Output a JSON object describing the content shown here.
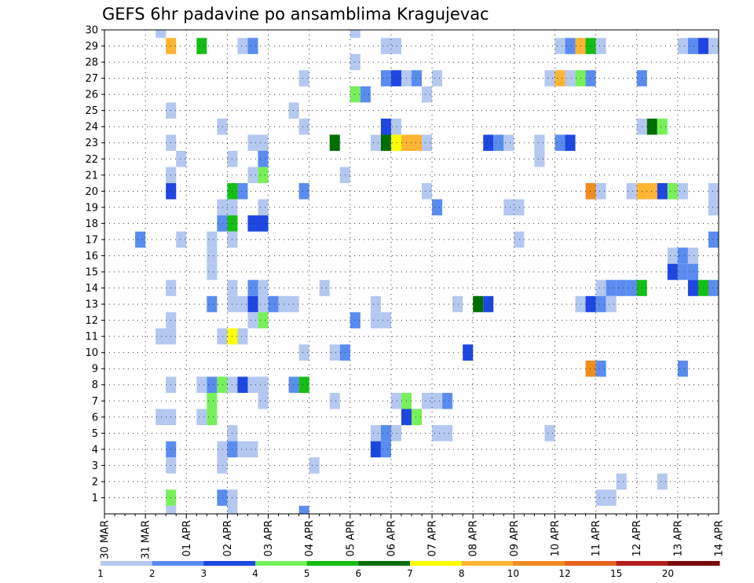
{
  "chart_data": {
    "type": "heatmap",
    "title": "GEFS 6hr padavine po ansamblima Kragujevac",
    "x_labels": [
      "30 MAR",
      "31 MAR",
      "01 APR",
      "02 APR",
      "03 APR",
      "04 APR",
      "05 APR",
      "06 APR",
      "07 APR",
      "08 APR",
      "09 APR",
      "10 APR",
      "11 APR",
      "12 APR",
      "13 APR",
      "14 APR"
    ],
    "y_labels": [
      "1",
      "2",
      "3",
      "4",
      "5",
      "6",
      "7",
      "8",
      "9",
      "10",
      "11",
      "12",
      "13",
      "14",
      "15",
      "16",
      "17",
      "18",
      "19",
      "20",
      "21",
      "22",
      "23",
      "24",
      "25",
      "26",
      "27",
      "28",
      "29",
      "30"
    ],
    "legend_levels": [
      "1",
      "2",
      "3",
      "4",
      "5",
      "6",
      "7",
      "8",
      "10",
      "12",
      "15",
      "20"
    ],
    "legend_colors": [
      "#b4c8f0",
      "#5a8cf0",
      "#1e46e1",
      "#78f05a",
      "#14be14",
      "#006e00",
      "#ffff00",
      "#ffb432",
      "#f08c1e",
      "#e6641e",
      "#b41e1e",
      "#780a0a"
    ],
    "cells": [
      {
        "d": "31 MAR",
        "h": 6,
        "m": 30,
        "c": 1
      },
      {
        "d": "31 MAR",
        "h": 12,
        "m": 29,
        "c": 8
      },
      {
        "d": "01 APR",
        "h": 6,
        "m": 29,
        "c": 5
      },
      {
        "d": "02 APR",
        "h": 6,
        "m": 29,
        "c": 1
      },
      {
        "d": "02 APR",
        "h": 12,
        "m": 29,
        "c": 2
      },
      {
        "d": "05 APR",
        "h": 0,
        "m": 30,
        "c": 1
      },
      {
        "d": "05 APR",
        "h": 18,
        "m": 29,
        "c": 1
      },
      {
        "d": "06 APR",
        "h": 0,
        "m": 29,
        "c": 1
      },
      {
        "d": "10 APR",
        "h": 0,
        "m": 29,
        "c": 1
      },
      {
        "d": "10 APR",
        "h": 6,
        "m": 29,
        "c": 2
      },
      {
        "d": "10 APR",
        "h": 12,
        "m": 29,
        "c": 8
      },
      {
        "d": "10 APR",
        "h": 18,
        "m": 29,
        "c": 5
      },
      {
        "d": "11 APR",
        "h": 0,
        "m": 29,
        "c": 1
      },
      {
        "d": "13 APR",
        "h": 0,
        "m": 29,
        "c": 1
      },
      {
        "d": "13 APR",
        "h": 6,
        "m": 29,
        "c": 2
      },
      {
        "d": "13 APR",
        "h": 12,
        "m": 29,
        "c": 3
      },
      {
        "d": "13 APR",
        "h": 18,
        "m": 29,
        "c": 1
      },
      {
        "d": "14 APR",
        "h": 0,
        "m": 30,
        "c": 4
      },
      {
        "d": "05 APR",
        "h": 0,
        "m": 28,
        "c": 1
      },
      {
        "d": "03 APR",
        "h": 18,
        "m": 27,
        "c": 1
      },
      {
        "d": "05 APR",
        "h": 18,
        "m": 27,
        "c": 2
      },
      {
        "d": "06 APR",
        "h": 0,
        "m": 27,
        "c": 3
      },
      {
        "d": "06 APR",
        "h": 6,
        "m": 27,
        "c": 1
      },
      {
        "d": "06 APR",
        "h": 12,
        "m": 27,
        "c": 2
      },
      {
        "d": "07 APR",
        "h": 0,
        "m": 27,
        "c": 1
      },
      {
        "d": "09 APR",
        "h": 18,
        "m": 27,
        "c": 1
      },
      {
        "d": "10 APR",
        "h": 0,
        "m": 27,
        "c": 8
      },
      {
        "d": "10 APR",
        "h": 6,
        "m": 27,
        "c": 1
      },
      {
        "d": "10 APR",
        "h": 12,
        "m": 27,
        "c": 4
      },
      {
        "d": "10 APR",
        "h": 18,
        "m": 27,
        "c": 2
      },
      {
        "d": "12 APR",
        "h": 0,
        "m": 27,
        "c": 2
      },
      {
        "d": "05 APR",
        "h": 0,
        "m": 26,
        "c": 4
      },
      {
        "d": "05 APR",
        "h": 6,
        "m": 26,
        "c": 2
      },
      {
        "d": "06 APR",
        "h": 18,
        "m": 26,
        "c": 1
      },
      {
        "d": "31 MAR",
        "h": 12,
        "m": 25,
        "c": 1
      },
      {
        "d": "03 APR",
        "h": 12,
        "m": 25,
        "c": 1
      },
      {
        "d": "14 APR",
        "h": 0,
        "m": 25,
        "c": 1
      },
      {
        "d": "01 APR",
        "h": 18,
        "m": 24,
        "c": 1
      },
      {
        "d": "03 APR",
        "h": 18,
        "m": 24,
        "c": 1
      },
      {
        "d": "05 APR",
        "h": 18,
        "m": 24,
        "c": 3
      },
      {
        "d": "06 APR",
        "h": 0,
        "m": 24,
        "c": 1
      },
      {
        "d": "12 APR",
        "h": 0,
        "m": 24,
        "c": 1
      },
      {
        "d": "12 APR",
        "h": 6,
        "m": 24,
        "c": 6
      },
      {
        "d": "12 APR",
        "h": 12,
        "m": 24,
        "c": 4
      },
      {
        "d": "31 MAR",
        "h": 12,
        "m": 23,
        "c": 1
      },
      {
        "d": "02 APR",
        "h": 12,
        "m": 23,
        "c": 1
      },
      {
        "d": "02 APR",
        "h": 18,
        "m": 23,
        "c": 1
      },
      {
        "d": "04 APR",
        "h": 12,
        "m": 23,
        "c": 6
      },
      {
        "d": "05 APR",
        "h": 12,
        "m": 23,
        "c": 1
      },
      {
        "d": "05 APR",
        "h": 18,
        "m": 23,
        "c": 6
      },
      {
        "d": "06 APR",
        "h": 0,
        "m": 23,
        "c": 7
      },
      {
        "d": "06 APR",
        "h": 6,
        "m": 23,
        "c": 8
      },
      {
        "d": "06 APR",
        "h": 12,
        "m": 23,
        "c": 8
      },
      {
        "d": "06 APR",
        "h": 18,
        "m": 23,
        "c": 1
      },
      {
        "d": "08 APR",
        "h": 6,
        "m": 23,
        "c": 3
      },
      {
        "d": "08 APR",
        "h": 12,
        "m": 23,
        "c": 2
      },
      {
        "d": "08 APR",
        "h": 18,
        "m": 23,
        "c": 1
      },
      {
        "d": "09 APR",
        "h": 12,
        "m": 23,
        "c": 1
      },
      {
        "d": "10 APR",
        "h": 0,
        "m": 23,
        "c": 2
      },
      {
        "d": "10 APR",
        "h": 6,
        "m": 23,
        "c": 3
      },
      {
        "d": "31 MAR",
        "h": 18,
        "m": 22,
        "c": 1
      },
      {
        "d": "02 APR",
        "h": 0,
        "m": 22,
        "c": 1
      },
      {
        "d": "02 APR",
        "h": 18,
        "m": 22,
        "c": 2
      },
      {
        "d": "09 APR",
        "h": 12,
        "m": 22,
        "c": 1
      },
      {
        "d": "14 APR",
        "h": 0,
        "m": 22,
        "c": 1
      },
      {
        "d": "31 MAR",
        "h": 12,
        "m": 21,
        "c": 1
      },
      {
        "d": "02 APR",
        "h": 12,
        "m": 21,
        "c": 1
      },
      {
        "d": "02 APR",
        "h": 18,
        "m": 21,
        "c": 4
      },
      {
        "d": "04 APR",
        "h": 18,
        "m": 21,
        "c": 1
      },
      {
        "d": "31 MAR",
        "h": 12,
        "m": 20,
        "c": 3
      },
      {
        "d": "02 APR",
        "h": 0,
        "m": 20,
        "c": 5
      },
      {
        "d": "02 APR",
        "h": 6,
        "m": 20,
        "c": 2
      },
      {
        "d": "03 APR",
        "h": 18,
        "m": 20,
        "c": 2
      },
      {
        "d": "06 APR",
        "h": 18,
        "m": 20,
        "c": 1
      },
      {
        "d": "10 APR",
        "h": 18,
        "m": 20,
        "c": 9
      },
      {
        "d": "11 APR",
        "h": 0,
        "m": 20,
        "c": 1
      },
      {
        "d": "11 APR",
        "h": 18,
        "m": 20,
        "c": 1
      },
      {
        "d": "12 APR",
        "h": 0,
        "m": 20,
        "c": 8
      },
      {
        "d": "12 APR",
        "h": 6,
        "m": 20,
        "c": 8
      },
      {
        "d": "12 APR",
        "h": 12,
        "m": 20,
        "c": 3
      },
      {
        "d": "12 APR",
        "h": 18,
        "m": 20,
        "c": 4
      },
      {
        "d": "13 APR",
        "h": 0,
        "m": 20,
        "c": 1
      },
      {
        "d": "13 APR",
        "h": 18,
        "m": 20,
        "c": 1
      },
      {
        "d": "14 APR",
        "h": 0,
        "m": 20,
        "c": 9
      },
      {
        "d": "01 APR",
        "h": 18,
        "m": 19,
        "c": 1
      },
      {
        "d": "02 APR",
        "h": 0,
        "m": 19,
        "c": 1
      },
      {
        "d": "02 APR",
        "h": 18,
        "m": 19,
        "c": 1
      },
      {
        "d": "07 APR",
        "h": 0,
        "m": 19,
        "c": 2
      },
      {
        "d": "08 APR",
        "h": 18,
        "m": 19,
        "c": 1
      },
      {
        "d": "09 APR",
        "h": 0,
        "m": 19,
        "c": 1
      },
      {
        "d": "13 APR",
        "h": 18,
        "m": 19,
        "c": 1
      },
      {
        "d": "01 APR",
        "h": 18,
        "m": 18,
        "c": 2
      },
      {
        "d": "02 APR",
        "h": 0,
        "m": 18,
        "c": 5
      },
      {
        "d": "02 APR",
        "h": 12,
        "m": 18,
        "c": 3
      },
      {
        "d": "02 APR",
        "h": 18,
        "m": 18,
        "c": 3
      },
      {
        "d": "30 MAR",
        "h": 18,
        "m": 17,
        "c": 2
      },
      {
        "d": "31 MAR",
        "h": 18,
        "m": 17,
        "c": 1
      },
      {
        "d": "01 APR",
        "h": 12,
        "m": 17,
        "c": 1
      },
      {
        "d": "02 APR",
        "h": 0,
        "m": 17,
        "c": 1
      },
      {
        "d": "09 APR",
        "h": 0,
        "m": 17,
        "c": 1
      },
      {
        "d": "13 APR",
        "h": 18,
        "m": 17,
        "c": 2
      },
      {
        "d": "01 APR",
        "h": 12,
        "m": 16,
        "c": 1
      },
      {
        "d": "12 APR",
        "h": 18,
        "m": 16,
        "c": 1
      },
      {
        "d": "13 APR",
        "h": 0,
        "m": 16,
        "c": 2
      },
      {
        "d": "13 APR",
        "h": 6,
        "m": 16,
        "c": 1
      },
      {
        "d": "01 APR",
        "h": 12,
        "m": 15,
        "c": 1
      },
      {
        "d": "12 APR",
        "h": 18,
        "m": 15,
        "c": 3
      },
      {
        "d": "13 APR",
        "h": 0,
        "m": 15,
        "c": 2
      },
      {
        "d": "13 APR",
        "h": 6,
        "m": 15,
        "c": 2
      },
      {
        "d": "31 MAR",
        "h": 12,
        "m": 14,
        "c": 1
      },
      {
        "d": "02 APR",
        "h": 0,
        "m": 14,
        "c": 1
      },
      {
        "d": "02 APR",
        "h": 12,
        "m": 14,
        "c": 2
      },
      {
        "d": "02 APR",
        "h": 18,
        "m": 14,
        "c": 1
      },
      {
        "d": "04 APR",
        "h": 6,
        "m": 14,
        "c": 1
      },
      {
        "d": "11 APR",
        "h": 0,
        "m": 14,
        "c": 1
      },
      {
        "d": "11 APR",
        "h": 6,
        "m": 14,
        "c": 2
      },
      {
        "d": "11 APR",
        "h": 12,
        "m": 14,
        "c": 2
      },
      {
        "d": "11 APR",
        "h": 18,
        "m": 14,
        "c": 2
      },
      {
        "d": "12 APR",
        "h": 0,
        "m": 14,
        "c": 5
      },
      {
        "d": "13 APR",
        "h": 6,
        "m": 14,
        "c": 3
      },
      {
        "d": "13 APR",
        "h": 12,
        "m": 14,
        "c": 5
      },
      {
        "d": "13 APR",
        "h": 18,
        "m": 14,
        "c": 2
      },
      {
        "d": "01 APR",
        "h": 12,
        "m": 13,
        "c": 2
      },
      {
        "d": "02 APR",
        "h": 0,
        "m": 13,
        "c": 1
      },
      {
        "d": "02 APR",
        "h": 6,
        "m": 13,
        "c": 1
      },
      {
        "d": "02 APR",
        "h": 12,
        "m": 13,
        "c": 3
      },
      {
        "d": "02 APR",
        "h": 18,
        "m": 13,
        "c": 1
      },
      {
        "d": "03 APR",
        "h": 0,
        "m": 13,
        "c": 2
      },
      {
        "d": "03 APR",
        "h": 6,
        "m": 13,
        "c": 1
      },
      {
        "d": "03 APR",
        "h": 12,
        "m": 13,
        "c": 1
      },
      {
        "d": "05 APR",
        "h": 12,
        "m": 13,
        "c": 1
      },
      {
        "d": "07 APR",
        "h": 12,
        "m": 13,
        "c": 1
      },
      {
        "d": "08 APR",
        "h": 0,
        "m": 13,
        "c": 6
      },
      {
        "d": "08 APR",
        "h": 6,
        "m": 13,
        "c": 3
      },
      {
        "d": "10 APR",
        "h": 12,
        "m": 13,
        "c": 1
      },
      {
        "d": "10 APR",
        "h": 18,
        "m": 13,
        "c": 3
      },
      {
        "d": "11 APR",
        "h": 0,
        "m": 13,
        "c": 2
      },
      {
        "d": "11 APR",
        "h": 6,
        "m": 13,
        "c": 1
      },
      {
        "d": "31 MAR",
        "h": 12,
        "m": 12,
        "c": 1
      },
      {
        "d": "02 APR",
        "h": 12,
        "m": 12,
        "c": 1
      },
      {
        "d": "02 APR",
        "h": 18,
        "m": 12,
        "c": 4
      },
      {
        "d": "05 APR",
        "h": 0,
        "m": 12,
        "c": 2
      },
      {
        "d": "05 APR",
        "h": 12,
        "m": 12,
        "c": 1
      },
      {
        "d": "05 APR",
        "h": 18,
        "m": 12,
        "c": 1
      },
      {
        "d": "31 MAR",
        "h": 6,
        "m": 11,
        "c": 1
      },
      {
        "d": "31 MAR",
        "h": 12,
        "m": 11,
        "c": 1
      },
      {
        "d": "01 APR",
        "h": 18,
        "m": 11,
        "c": 1
      },
      {
        "d": "02 APR",
        "h": 0,
        "m": 11,
        "c": 7
      },
      {
        "d": "02 APR",
        "h": 6,
        "m": 11,
        "c": 1
      },
      {
        "d": "03 APR",
        "h": 18,
        "m": 10,
        "c": 1
      },
      {
        "d": "04 APR",
        "h": 12,
        "m": 10,
        "c": 1
      },
      {
        "d": "04 APR",
        "h": 18,
        "m": 10,
        "c": 2
      },
      {
        "d": "07 APR",
        "h": 18,
        "m": 10,
        "c": 3
      },
      {
        "d": "10 APR",
        "h": 18,
        "m": 9,
        "c": 9
      },
      {
        "d": "11 APR",
        "h": 0,
        "m": 9,
        "c": 2
      },
      {
        "d": "13 APR",
        "h": 0,
        "m": 9,
        "c": 2
      },
      {
        "d": "31 MAR",
        "h": 12,
        "m": 8,
        "c": 1
      },
      {
        "d": "01 APR",
        "h": 6,
        "m": 8,
        "c": 1
      },
      {
        "d": "01 APR",
        "h": 12,
        "m": 8,
        "c": 2
      },
      {
        "d": "01 APR",
        "h": 18,
        "m": 8,
        "c": 4
      },
      {
        "d": "02 APR",
        "h": 0,
        "m": 8,
        "c": 1
      },
      {
        "d": "02 APR",
        "h": 6,
        "m": 8,
        "c": 3
      },
      {
        "d": "02 APR",
        "h": 12,
        "m": 8,
        "c": 1
      },
      {
        "d": "02 APR",
        "h": 18,
        "m": 8,
        "c": 1
      },
      {
        "d": "03 APR",
        "h": 12,
        "m": 8,
        "c": 2
      },
      {
        "d": "03 APR",
        "h": 18,
        "m": 8,
        "c": 5
      },
      {
        "d": "01 APR",
        "h": 12,
        "m": 7,
        "c": 4
      },
      {
        "d": "02 APR",
        "h": 18,
        "m": 7,
        "c": 1
      },
      {
        "d": "04 APR",
        "h": 12,
        "m": 7,
        "c": 1
      },
      {
        "d": "06 APR",
        "h": 0,
        "m": 7,
        "c": 1
      },
      {
        "d": "06 APR",
        "h": 6,
        "m": 7,
        "c": 4
      },
      {
        "d": "06 APR",
        "h": 18,
        "m": 7,
        "c": 1
      },
      {
        "d": "07 APR",
        "h": 0,
        "m": 7,
        "c": 1
      },
      {
        "d": "07 APR",
        "h": 6,
        "m": 7,
        "c": 2
      },
      {
        "d": "14 APR",
        "h": 0,
        "m": 7,
        "c": 8
      },
      {
        "d": "31 MAR",
        "h": 6,
        "m": 6,
        "c": 1
      },
      {
        "d": "31 MAR",
        "h": 12,
        "m": 6,
        "c": 1
      },
      {
        "d": "01 APR",
        "h": 6,
        "m": 6,
        "c": 1
      },
      {
        "d": "01 APR",
        "h": 12,
        "m": 6,
        "c": 4
      },
      {
        "d": "06 APR",
        "h": 6,
        "m": 6,
        "c": 3
      },
      {
        "d": "06 APR",
        "h": 12,
        "m": 6,
        "c": 4
      },
      {
        "d": "02 APR",
        "h": 0,
        "m": 5,
        "c": 1
      },
      {
        "d": "05 APR",
        "h": 12,
        "m": 5,
        "c": 1
      },
      {
        "d": "05 APR",
        "h": 18,
        "m": 5,
        "c": 2
      },
      {
        "d": "06 APR",
        "h": 0,
        "m": 5,
        "c": 1
      },
      {
        "d": "07 APR",
        "h": 0,
        "m": 5,
        "c": 1
      },
      {
        "d": "07 APR",
        "h": 6,
        "m": 5,
        "c": 1
      },
      {
        "d": "09 APR",
        "h": 18,
        "m": 5,
        "c": 1
      },
      {
        "d": "31 MAR",
        "h": 12,
        "m": 4,
        "c": 2
      },
      {
        "d": "01 APR",
        "h": 18,
        "m": 4,
        "c": 1
      },
      {
        "d": "02 APR",
        "h": 0,
        "m": 4,
        "c": 2
      },
      {
        "d": "02 APR",
        "h": 6,
        "m": 4,
        "c": 1
      },
      {
        "d": "02 APR",
        "h": 12,
        "m": 4,
        "c": 1
      },
      {
        "d": "05 APR",
        "h": 12,
        "m": 4,
        "c": 3
      },
      {
        "d": "05 APR",
        "h": 18,
        "m": 4,
        "c": 2
      },
      {
        "d": "31 MAR",
        "h": 12,
        "m": 3,
        "c": 1
      },
      {
        "d": "01 APR",
        "h": 18,
        "m": 3,
        "c": 1
      },
      {
        "d": "04 APR",
        "h": 0,
        "m": 3,
        "c": 1
      },
      {
        "d": "11 APR",
        "h": 12,
        "m": 2,
        "c": 1
      },
      {
        "d": "12 APR",
        "h": 12,
        "m": 2,
        "c": 1
      },
      {
        "d": "31 MAR",
        "h": 12,
        "m": 1,
        "c": 4
      },
      {
        "d": "01 APR",
        "h": 18,
        "m": 1,
        "c": 2
      },
      {
        "d": "02 APR",
        "h": 0,
        "m": 1,
        "c": 1
      },
      {
        "d": "11 APR",
        "h": 0,
        "m": 1,
        "c": 1
      },
      {
        "d": "11 APR",
        "h": 6,
        "m": 1,
        "c": 1
      },
      {
        "d": "14 APR",
        "h": 0,
        "m": 1,
        "c": 3
      },
      {
        "d": "31 MAR",
        "h": 12,
        "m": 0,
        "c": 1
      },
      {
        "d": "02 APR",
        "h": 0,
        "m": 0,
        "c": 1
      },
      {
        "d": "03 APR",
        "h": 18,
        "m": 0,
        "c": 2
      }
    ]
  }
}
